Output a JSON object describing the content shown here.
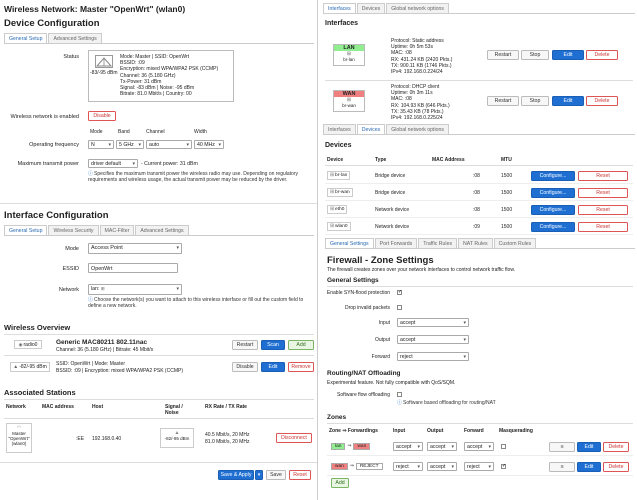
{
  "left": {
    "title": "Wireless Network: Master \"OpenWrt\" (wlan0)",
    "device_config": {
      "heading": "Device Configuration",
      "tabs": [
        "General Setup",
        "Advanced Settings"
      ],
      "status_label": "Status",
      "status_signal": "-83/-95 dBm",
      "status_lines": [
        "Mode: Master | SSID: OpenWrt",
        "BSSID:                   :09",
        "Encryption: mixed WPA/WPA2 PSK (CCMP)",
        "Channel: 36 (5.180 GHz)",
        "Tx-Power: 31 dBm",
        "Signal: -83 dBm | Noise: -95 dBm",
        "Bitrate: 81.0 Mbit/s | Country: 00"
      ],
      "enabled_label": "Wireless network is enabled",
      "disable_button": "Disable",
      "freq_label": "Operating frequency",
      "freq_headers": [
        "Mode",
        "Band",
        "Channel",
        "Width"
      ],
      "freq_values": [
        "N",
        "5 GHz",
        "auto",
        "40 MHz"
      ],
      "power_label": "Maximum transmit power",
      "power_value": "driver default",
      "power_current": "- Current power: 31 dBm",
      "power_info": "Specifies the maximum transmit power the wireless radio may use. Depending on regulatory requirements and wireless usage, the actual transmit power may be reduced by the driver."
    },
    "iface_config": {
      "heading": "Interface Configuration",
      "tabs": [
        "General Setup",
        "Wireless Security",
        "MAC-Filter",
        "Advanced Settings"
      ],
      "mode_label": "Mode",
      "mode_value": "Access Point",
      "essid_label": "ESSID",
      "essid_value": "OpenWrt",
      "network_label": "Network",
      "network_value": "lan: ",
      "network_info": "Choose the network(s) you want to attach to this wireless interface or fill out the custom field to define a new network."
    },
    "overview": {
      "heading": "Wireless Overview",
      "radio_name": "radio0",
      "radio_title": "Generic MAC80211 802.11nac",
      "radio_sub": "Channel: 36 (5.180 GHz) | Bitrate: 45 Mbit/s",
      "restart": "Restart",
      "scan": "Scan",
      "add": "Add",
      "net_signal": "-82/-95 dBm",
      "net_line1": "SSID: OpenWrt | Mode: Master",
      "net_line2": "BSSID:                  :09 | Encryption: mixed WPA/WPA2 PSK (CCMP)",
      "disable": "Disable",
      "edit": "Edit",
      "remove": "Remove"
    },
    "stations": {
      "heading": "Associated Stations",
      "headers": [
        "Network",
        "MAC address",
        "Host",
        "Signal / Noise",
        "RX Rate / TX Rate"
      ],
      "row": {
        "network": "Master \"OpenWrt\" (wlan0)",
        "mac": ":EE",
        "host": "192.168.0.40",
        "signal": "-82/-95 dBm",
        "rx": "40.5 Mbit/s, 20 MHz",
        "tx": "81.0 Mbit/s, 20 MHz",
        "disconnect": "Disconnect"
      }
    },
    "footer": {
      "save_apply": "Save & Apply",
      "save": "Save",
      "reset": "Reset"
    }
  },
  "right": {
    "top_tabs": [
      "Interfaces",
      "Devices",
      "Global network options"
    ],
    "interfaces": {
      "heading": "Interfaces",
      "lan": {
        "name": "LAN",
        "dev": "br-lan",
        "lines": [
          "Protocol: Static address",
          "Uptime: 0h 5m 53s",
          "MAC:                           :08",
          "RX: 431.24 KB (2420 Pkts.)",
          "TX: 900.11 KB (1746 Pkts.)",
          "IPv4: 192.168.0.224/24"
        ],
        "color": "#90ee90"
      },
      "wan": {
        "name": "WAN",
        "dev": "br-wan",
        "lines": [
          "Protocol: DHCP client",
          "Uptime: 0h 3m 11s",
          "MAC:                           :08",
          "RX: 104.93 KB (646 Pkts.)",
          "TX: 35.43 KB (78 Pkts.)",
          "IPv4: 192.168.0.225/24"
        ],
        "color": "#f08080"
      },
      "restart": "Restart",
      "stop": "Stop",
      "edit": "Edit",
      "delete": "Delete"
    },
    "mid_tabs": [
      "Interfaces",
      "Devices",
      "Global network options"
    ],
    "devices": {
      "heading": "Devices",
      "headers": [
        "Device",
        "Type",
        "MAC Address",
        "MTU"
      ],
      "rows": [
        {
          "device": "br-lan",
          "type": "Bridge device",
          "mac": ":08",
          "mtu": "1500"
        },
        {
          "device": "br-wan",
          "type": "Bridge device",
          "mac": ":08",
          "mtu": "1500"
        },
        {
          "device": "eth0",
          "type": "Network device",
          "mac": ":08",
          "mtu": "1500"
        },
        {
          "device": "wlan0",
          "type": "Network device",
          "mac": ":09",
          "mtu": "1500"
        }
      ],
      "configure": "Configure...",
      "reset": "Reset"
    },
    "fw_tabs": [
      "General Settings",
      "Port Forwards",
      "Traffic Rules",
      "NAT Rules",
      "Custom Rules"
    ],
    "firewall": {
      "heading": "Firewall - Zone Settings",
      "desc": "The firewall creates zones over your network interfaces to control network traffic flow.",
      "general_heading": "General Settings",
      "syn_label": "Enable SYN-flood protection",
      "invalid_label": "Drop invalid packets",
      "input_label": "Input",
      "input_value": "accept",
      "output_label": "Output",
      "output_value": "accept",
      "forward_label": "Forward",
      "forward_value": "reject",
      "nat_heading": "Routing/NAT Offloading",
      "nat_desc": "Experimental feature. Not fully compatible with QoS/SQM.",
      "offload_label": "Software flow offloading",
      "offload_info": "Software based offloading for routing/NAT",
      "zones_heading": "Zones",
      "zone_headers": [
        "Zone ⇒ Forwardings",
        "Input",
        "Output",
        "Forward",
        "Masquerading"
      ],
      "zones": [
        {
          "zone": "lan",
          "fwd": "wan",
          "arrow": "⇒",
          "input": "accept",
          "output": "accept",
          "forward": "accept",
          "masq": false,
          "zc": "#90ee90",
          "fc": "#f08080"
        },
        {
          "zone": "wan",
          "fwd": "REJECT",
          "arrow": "⇒",
          "input": "reject",
          "output": "accept",
          "forward": "reject",
          "masq": true,
          "zc": "#f08080",
          "fc": "#ffffff"
        }
      ],
      "move": "≡",
      "edit": "Edit",
      "delete": "Delete",
      "add": "Add"
    }
  }
}
